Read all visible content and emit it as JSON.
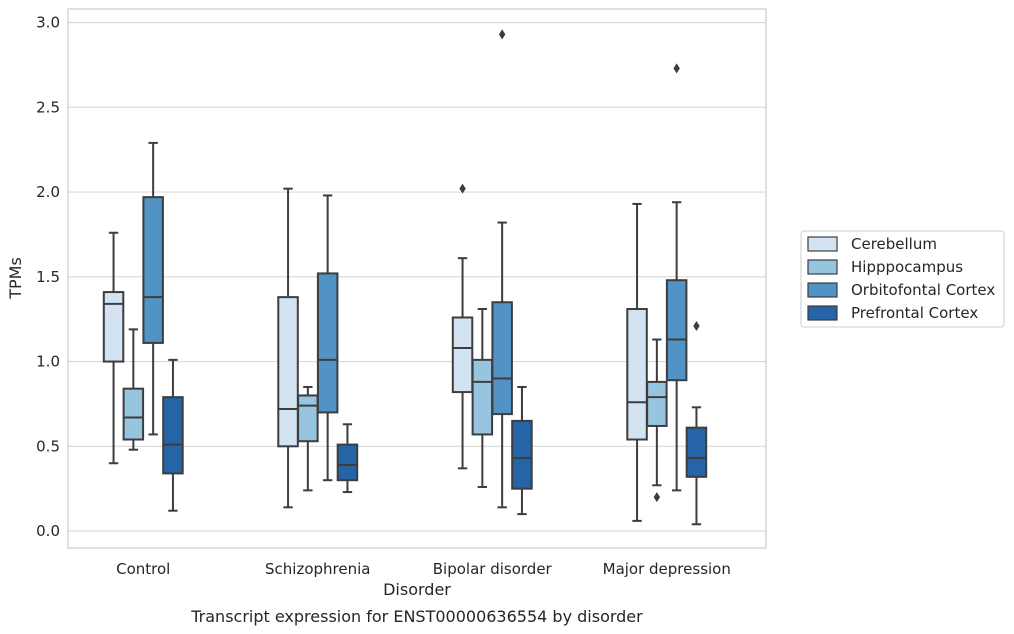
{
  "chart_data": {
    "type": "box",
    "caption": "Transcript expression for ENST00000636554 by disorder",
    "xlabel": "Disorder",
    "ylabel": "TPMs",
    "ylim": [
      -0.1,
      3.08
    ],
    "yticks": [
      "0.0",
      "0.5",
      "1.0",
      "1.5",
      "2.0",
      "2.5",
      "3.0"
    ],
    "ytick_values": [
      0,
      0.5,
      1,
      1.5,
      2,
      2.5,
      3
    ],
    "grid": true,
    "legend_position": "right",
    "categories": [
      "Control",
      "Schizophrenia",
      "Bipolar disorder",
      "Major depression"
    ],
    "series": [
      {
        "name": "Cerebellum",
        "color": "#d4e3f2",
        "boxes": [
          {
            "whislo": 0.4,
            "q1": 1.0,
            "med": 1.34,
            "q3": 1.41,
            "whishi": 1.76,
            "fliers": []
          },
          {
            "whislo": 0.14,
            "q1": 0.5,
            "med": 0.72,
            "q3": 1.38,
            "whishi": 2.02,
            "fliers": []
          },
          {
            "whislo": 0.37,
            "q1": 0.82,
            "med": 1.08,
            "q3": 1.26,
            "whishi": 1.61,
            "fliers": [
              2.02
            ]
          },
          {
            "whislo": 0.06,
            "q1": 0.54,
            "med": 0.76,
            "q3": 1.31,
            "whishi": 1.93,
            "fliers": []
          }
        ]
      },
      {
        "name": "Hipppocampus",
        "color": "#97c4de",
        "boxes": [
          {
            "whislo": 0.48,
            "q1": 0.54,
            "med": 0.67,
            "q3": 0.84,
            "whishi": 1.19,
            "fliers": []
          },
          {
            "whislo": 0.24,
            "q1": 0.53,
            "med": 0.74,
            "q3": 0.8,
            "whishi": 0.85,
            "fliers": []
          },
          {
            "whislo": 0.26,
            "q1": 0.57,
            "med": 0.88,
            "q3": 1.01,
            "whishi": 1.31,
            "fliers": []
          },
          {
            "whislo": 0.27,
            "q1": 0.62,
            "med": 0.79,
            "q3": 0.88,
            "whishi": 1.13,
            "fliers": [
              0.2
            ]
          }
        ]
      },
      {
        "name": "Orbitofontal Cortex",
        "color": "#5193c4",
        "boxes": [
          {
            "whislo": 0.57,
            "q1": 1.11,
            "med": 1.38,
            "q3": 1.97,
            "whishi": 2.29,
            "fliers": []
          },
          {
            "whislo": 0.3,
            "q1": 0.7,
            "med": 1.01,
            "q3": 1.52,
            "whishi": 1.98,
            "fliers": []
          },
          {
            "whislo": 0.14,
            "q1": 0.69,
            "med": 0.9,
            "q3": 1.35,
            "whishi": 1.82,
            "fliers": [
              2.93
            ]
          },
          {
            "whislo": 0.24,
            "q1": 0.89,
            "med": 1.13,
            "q3": 1.48,
            "whishi": 1.94,
            "fliers": [
              2.73
            ]
          }
        ]
      },
      {
        "name": "Prefrontal Cortex",
        "color": "#2564a6",
        "boxes": [
          {
            "whislo": 0.12,
            "q1": 0.34,
            "med": 0.51,
            "q3": 0.79,
            "whishi": 1.01,
            "fliers": []
          },
          {
            "whislo": 0.23,
            "q1": 0.3,
            "med": 0.39,
            "q3": 0.51,
            "whishi": 0.63,
            "fliers": []
          },
          {
            "whislo": 0.1,
            "q1": 0.25,
            "med": 0.43,
            "q3": 0.65,
            "whishi": 0.85,
            "fliers": []
          },
          {
            "whislo": 0.04,
            "q1": 0.32,
            "med": 0.43,
            "q3": 0.61,
            "whishi": 0.73,
            "fliers": [
              1.21
            ]
          }
        ]
      }
    ]
  }
}
